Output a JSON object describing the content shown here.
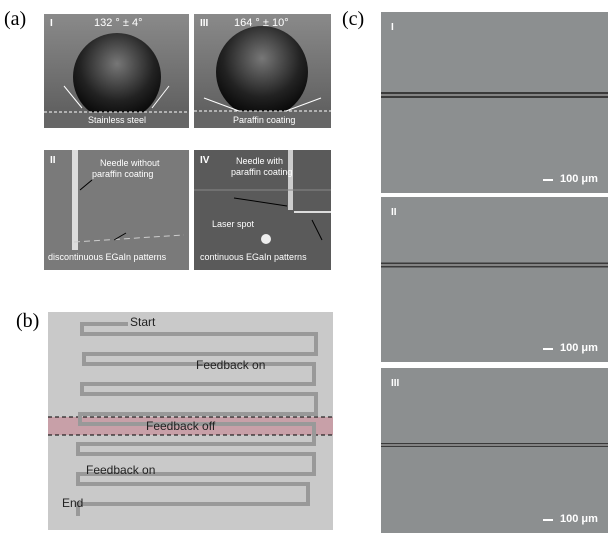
{
  "labels": {
    "a": "(a)",
    "b": "(b)",
    "c": "(c)"
  },
  "panel_a": {
    "photos": [
      {
        "numeral": "I",
        "angle": "132 ° ± 4°",
        "substrate": "Stainless steel"
      },
      {
        "numeral": "III",
        "angle": "164 ° ± 10°",
        "substrate": "Paraffin coating"
      }
    ],
    "needles": [
      {
        "numeral": "II",
        "needle_lines": [
          "Needle without",
          "paraffin coating"
        ],
        "pattern": "discontinuous EGaIn patterns"
      },
      {
        "numeral": "IV",
        "needle_lines": [
          "Needle with",
          "paraffin coating"
        ],
        "spot": "Laser spot",
        "pattern": "continuous EGaIn patterns"
      }
    ]
  },
  "panel_b": {
    "start": "Start",
    "feedback_on_1": "Feedback on",
    "feedback_off": "Feedback off",
    "feedback_on_2": "Feedback on",
    "end": "End"
  },
  "panel_c": [
    {
      "numeral": "I",
      "scale": "100 μm"
    },
    {
      "numeral": "II",
      "scale": "100 μm"
    },
    {
      "numeral": "III",
      "scale": "100 μm"
    }
  ]
}
